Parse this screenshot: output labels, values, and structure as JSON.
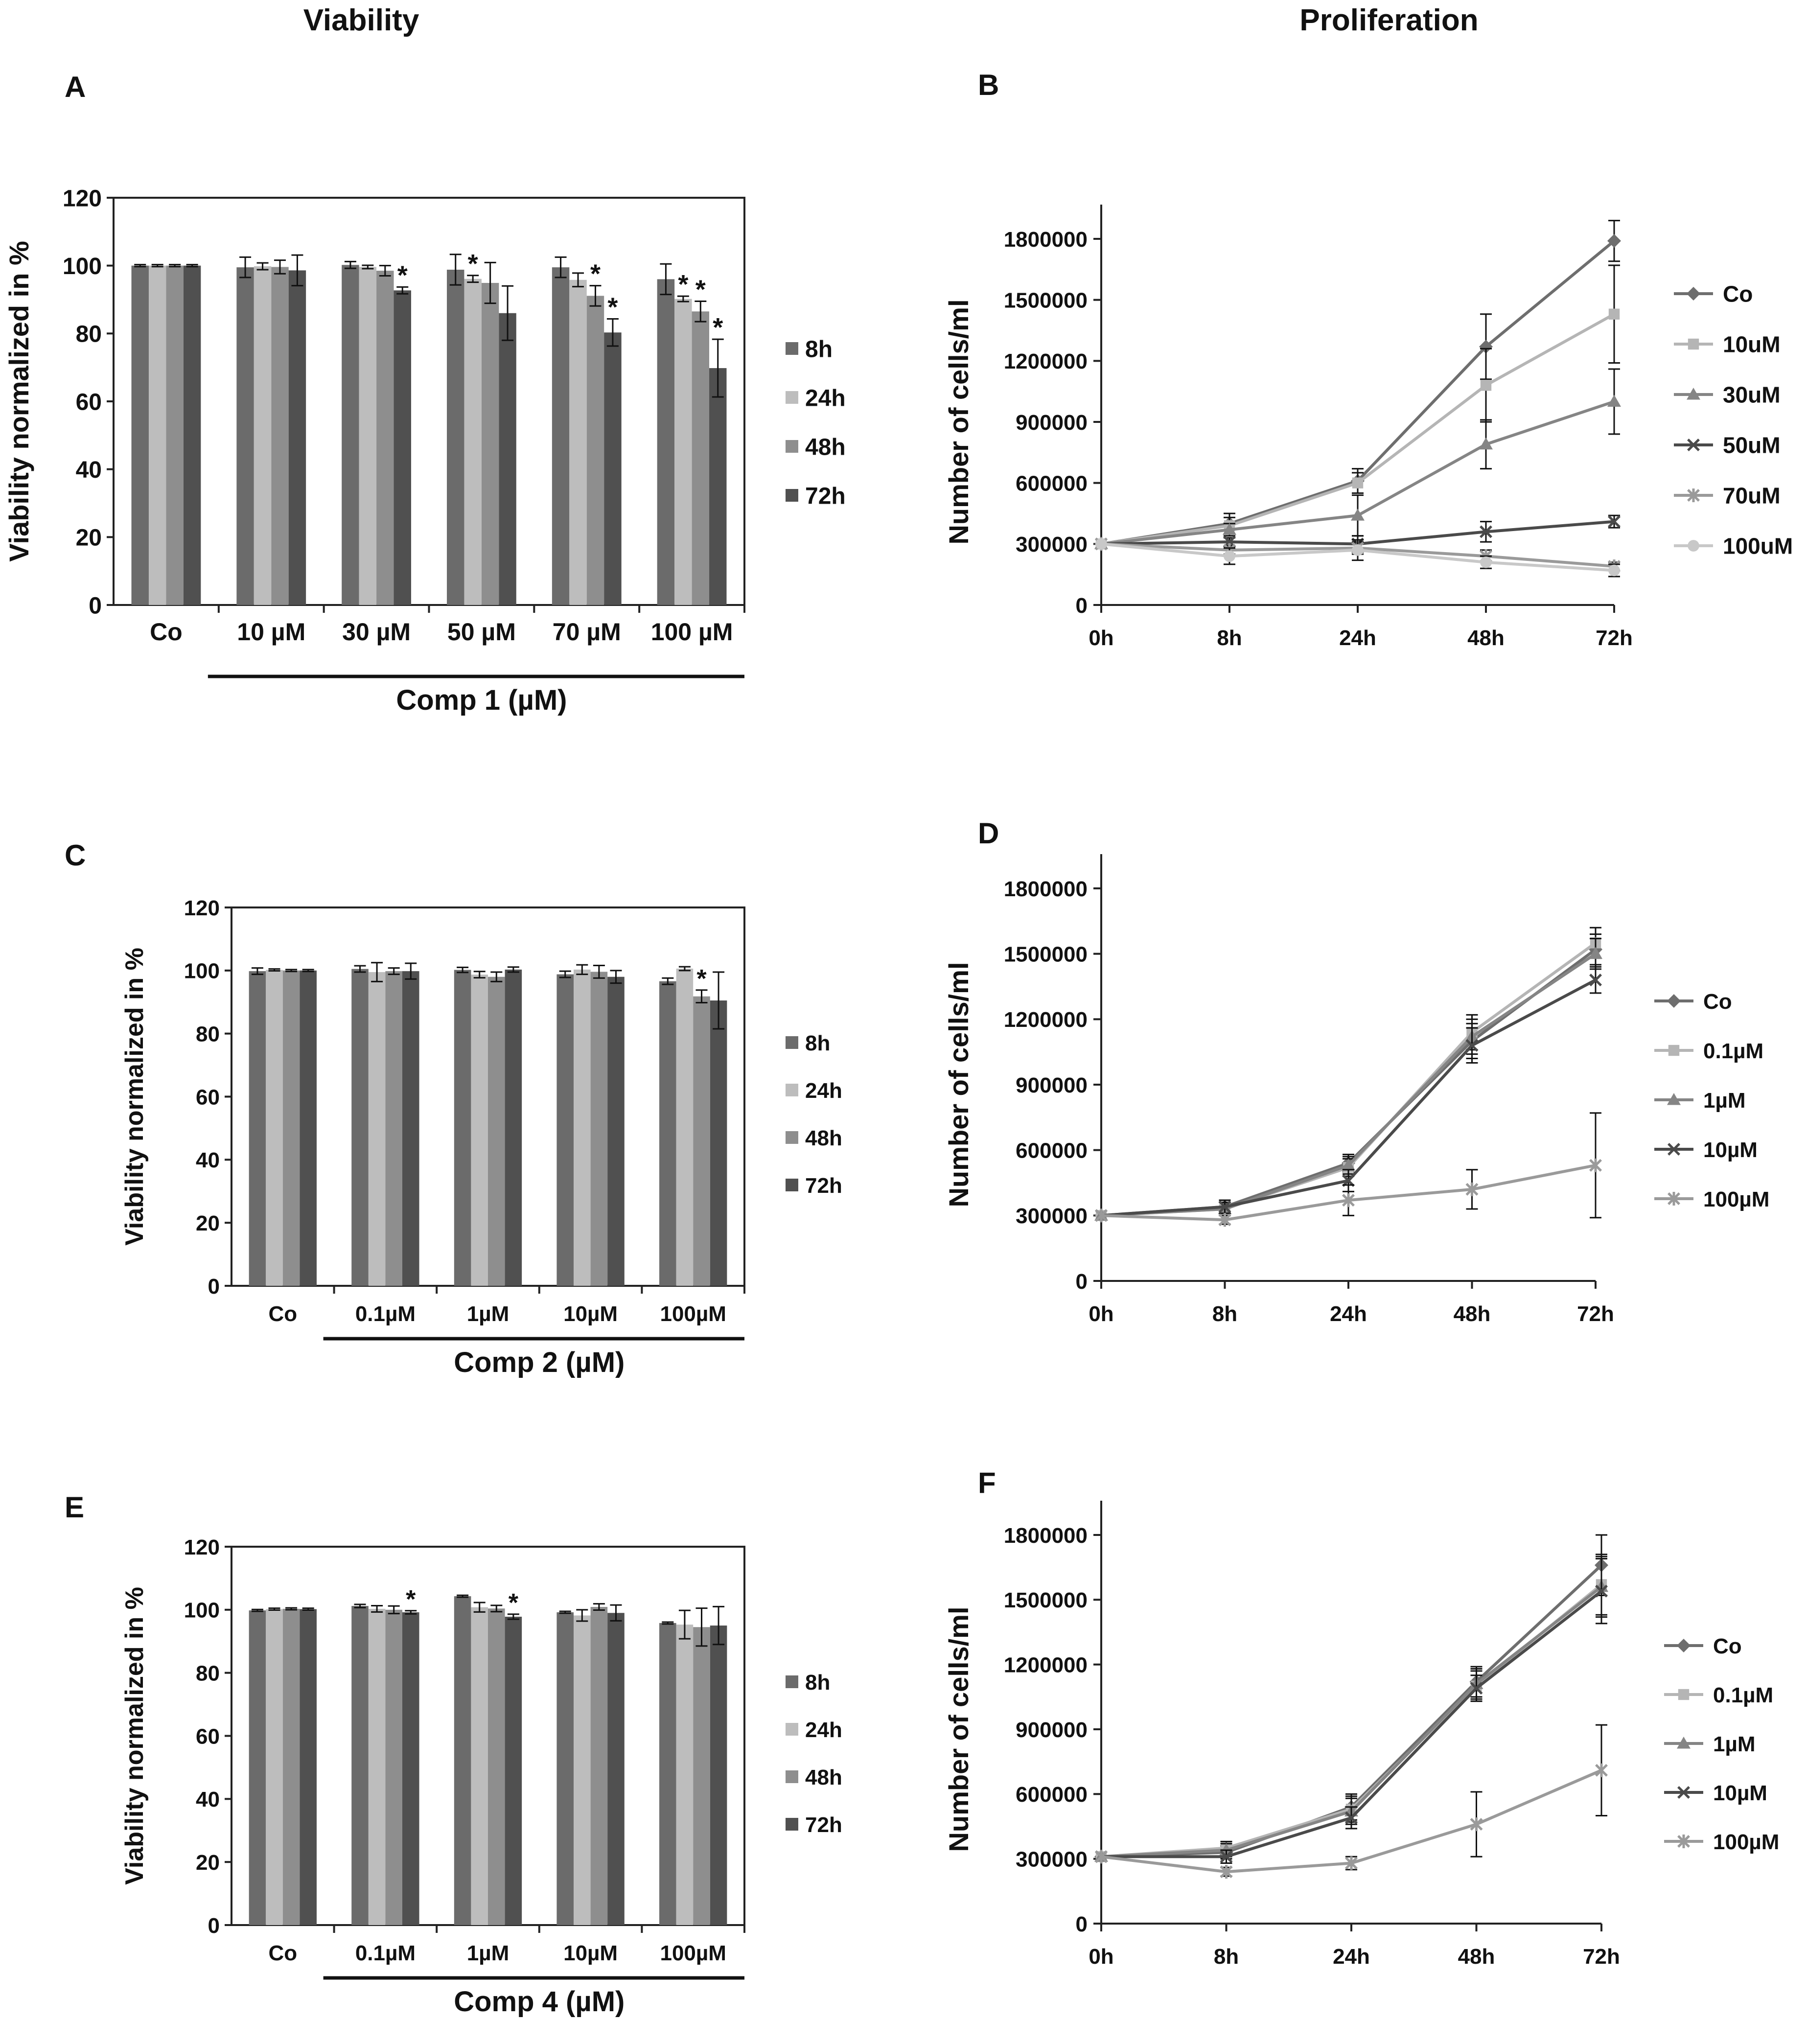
{
  "headers": {
    "viability": "Viability",
    "proliferation": "Proliferation"
  },
  "colors": {
    "h8": "#6b6b6b",
    "h24": "#bdbdbd",
    "h48": "#8e8e8e",
    "h72": "#505050",
    "Co": "#6e6e6e",
    "c2": "#b5b5b5",
    "c3": "#858585",
    "c4": "#4a4a4a",
    "c5": "#9a9a9a",
    "c6": "#c8c8c8"
  },
  "chart_data": [
    {
      "panel": "A",
      "type": "bar",
      "ylabel": "Viability normalized in %",
      "ylim": [
        0,
        120
      ],
      "yticks": [
        0,
        20,
        40,
        60,
        80,
        100,
        120
      ],
      "categories": [
        "Co",
        "10 µM",
        "30 µM",
        "50 µM",
        "70 µM",
        "100 µM"
      ],
      "group_label": "Comp 1 (µM)",
      "series": [
        {
          "name": "8h",
          "values": [
            100,
            99.5,
            100.2,
            98.8,
            99.5,
            96
          ],
          "errors": [
            0.3,
            3,
            1,
            4.5,
            3,
            4.5
          ]
        },
        {
          "name": "24h",
          "values": [
            100,
            99.8,
            99.6,
            96.1,
            95.8,
            90.2
          ],
          "errors": [
            0.3,
            1,
            0.5,
            1,
            2,
            0.8
          ]
        },
        {
          "name": "48h",
          "values": [
            100,
            99.6,
            98.5,
            94.9,
            91.1,
            86.5
          ],
          "errors": [
            0.3,
            2,
            1.5,
            6,
            3,
            3
          ]
        },
        {
          "name": "72h",
          "values": [
            100,
            98.6,
            92.7,
            86,
            80.3,
            69.8
          ],
          "errors": [
            0.3,
            4.5,
            1,
            8,
            4,
            8.5
          ]
        }
      ],
      "annotations": [
        {
          "text": "*",
          "category": "30 µM",
          "series": "72h"
        },
        {
          "text": "*",
          "category": "50 µM",
          "series": "24h"
        },
        {
          "text": "*",
          "category": "70 µM",
          "series": "48h"
        },
        {
          "text": "*",
          "category": "70 µM",
          "series": "72h"
        },
        {
          "text": "*",
          "category": "100 µM",
          "series": "24h"
        },
        {
          "text": "*",
          "category": "100 µM",
          "series": "48h"
        },
        {
          "text": "*",
          "category": "100 µM",
          "series": "72h"
        }
      ],
      "legend": [
        "8h",
        "24h",
        "48h",
        "72h"
      ]
    },
    {
      "panel": "B",
      "type": "line",
      "ylabel": "Number of cells/ml",
      "ylim": [
        0,
        1800000
      ],
      "yticks": [
        0,
        300000,
        600000,
        900000,
        1200000,
        1500000,
        1800000
      ],
      "x": [
        "0h",
        "8h",
        "24h",
        "48h",
        "72h"
      ],
      "series": [
        {
          "name": "Co",
          "marker": "diamond",
          "values": [
            300000,
            400000,
            610000,
            1270000,
            1790000
          ],
          "errors": [
            0,
            50000,
            60000,
            160000,
            100000
          ]
        },
        {
          "name": "10uM",
          "marker": "square",
          "values": [
            300000,
            390000,
            600000,
            1080000,
            1430000
          ],
          "errors": [
            0,
            40000,
            50000,
            180000,
            240000
          ]
        },
        {
          "name": "30uM",
          "marker": "triangle",
          "values": [
            300000,
            370000,
            440000,
            790000,
            1000000
          ],
          "errors": [
            0,
            30000,
            100000,
            120000,
            160000
          ]
        },
        {
          "name": "50uM",
          "marker": "x",
          "values": [
            300000,
            310000,
            300000,
            360000,
            410000
          ],
          "errors": [
            0,
            20000,
            40000,
            50000,
            30000
          ]
        },
        {
          "name": "70uM",
          "marker": "star",
          "values": [
            300000,
            270000,
            280000,
            240000,
            190000
          ],
          "errors": [
            0,
            20000,
            30000,
            30000,
            20000
          ]
        },
        {
          "name": "100uM",
          "marker": "circle",
          "values": [
            300000,
            240000,
            270000,
            210000,
            170000
          ],
          "errors": [
            0,
            40000,
            50000,
            30000,
            30000
          ]
        }
      ],
      "legend": [
        "Co",
        "10uM",
        "30uM",
        "50uM",
        "70uM",
        "100uM"
      ]
    },
    {
      "panel": "C",
      "type": "bar",
      "ylabel": "Viability normalized in %",
      "ylim": [
        0,
        120
      ],
      "yticks": [
        0,
        20,
        40,
        60,
        80,
        100,
        120
      ],
      "categories": [
        "Co",
        "0.1µM",
        "1µM",
        "10µM",
        "100µM"
      ],
      "group_label": "Comp 2 (µM)",
      "series": [
        {
          "name": "8h",
          "values": [
            99.8,
            100.5,
            100.2,
            98.8,
            96.6
          ],
          "errors": [
            1,
            1,
            0.8,
            1,
            1
          ]
        },
        {
          "name": "24h",
          "values": [
            100.2,
            99.5,
            98.7,
            100.3,
            100.6
          ],
          "errors": [
            0.3,
            3,
            1,
            1.5,
            0.6
          ]
        },
        {
          "name": "48h",
          "values": [
            100,
            99.8,
            98,
            99.6,
            91.8
          ],
          "errors": [
            0.3,
            1,
            1.5,
            2,
            2
          ]
        },
        {
          "name": "72h",
          "values": [
            100,
            99.8,
            100.3,
            98,
            90.5
          ],
          "errors": [
            0.3,
            2.5,
            0.8,
            2,
            9
          ]
        }
      ],
      "annotations": [
        {
          "text": "*",
          "category": "100µM",
          "series": "48h"
        }
      ],
      "legend": [
        "8h",
        "24h",
        "48h",
        "72h"
      ]
    },
    {
      "panel": "D",
      "type": "line",
      "ylabel": "Number of cells/ml",
      "ylim": [
        0,
        1800000
      ],
      "yticks": [
        0,
        300000,
        600000,
        900000,
        1200000,
        1500000,
        1800000
      ],
      "x": [
        "0h",
        "8h",
        "24h",
        "48h",
        "72h"
      ],
      "series": [
        {
          "name": "Co",
          "marker": "diamond",
          "values": [
            300000,
            340000,
            540000,
            1100000,
            1520000
          ],
          "errors": [
            0,
            30000,
            40000,
            80000,
            70000
          ]
        },
        {
          "name": "0.1µM",
          "marker": "square",
          "values": [
            300000,
            330000,
            520000,
            1140000,
            1550000
          ],
          "errors": [
            0,
            30000,
            40000,
            80000,
            70000
          ]
        },
        {
          "name": "1µM",
          "marker": "triangle",
          "values": [
            300000,
            330000,
            530000,
            1120000,
            1500000
          ],
          "errors": [
            0,
            30000,
            40000,
            80000,
            70000
          ]
        },
        {
          "name": "10µM",
          "marker": "x",
          "values": [
            300000,
            340000,
            460000,
            1080000,
            1380000
          ],
          "errors": [
            0,
            30000,
            50000,
            80000,
            60000
          ]
        },
        {
          "name": "100µM",
          "marker": "star",
          "values": [
            300000,
            280000,
            370000,
            420000,
            530000
          ],
          "errors": [
            0,
            20000,
            70000,
            90000,
            240000
          ]
        }
      ],
      "legend": [
        "Co",
        "0.1µM",
        "1µM",
        "10µM",
        "100µM"
      ]
    },
    {
      "panel": "E",
      "type": "bar",
      "ylabel": "Viability normalized in %",
      "ylim": [
        0,
        120
      ],
      "yticks": [
        0,
        20,
        40,
        60,
        80,
        100,
        120
      ],
      "categories": [
        "Co",
        "0.1µM",
        "1µM",
        "10µM",
        "100µM"
      ],
      "group_label": "Comp 4 (µM)",
      "series": [
        {
          "name": "8h",
          "values": [
            99.8,
            101.2,
            104.3,
            99.2,
            95.8
          ],
          "errors": [
            0.3,
            0.5,
            0.3,
            0.3,
            0.3
          ]
        },
        {
          "name": "24h",
          "values": [
            100.2,
            100.3,
            100.8,
            98.2,
            95.3
          ],
          "errors": [
            0.3,
            1,
            1.5,
            1.8,
            4.5
          ]
        },
        {
          "name": "48h",
          "values": [
            100.3,
            100,
            100.4,
            100.9,
            94.5
          ],
          "errors": [
            0.3,
            1.2,
            1,
            1,
            6
          ]
        },
        {
          "name": "72h",
          "values": [
            100.2,
            99.2,
            97.8,
            99,
            95
          ],
          "errors": [
            0.3,
            0.5,
            0.8,
            2.5,
            6
          ]
        }
      ],
      "annotations": [
        {
          "text": "*",
          "category": "0.1µM",
          "series": "72h"
        },
        {
          "text": "*",
          "category": "1µM",
          "series": "72h"
        }
      ],
      "legend": [
        "8h",
        "24h",
        "48h",
        "72h"
      ]
    },
    {
      "panel": "F",
      "type": "line",
      "ylabel": "Number of cells/ml",
      "ylim": [
        0,
        1800000
      ],
      "yticks": [
        0,
        300000,
        600000,
        900000,
        1200000,
        1500000,
        1800000
      ],
      "x": [
        "0h",
        "8h",
        "24h",
        "48h",
        "72h"
      ],
      "series": [
        {
          "name": "Co",
          "marker": "diamond",
          "values": [
            310000,
            330000,
            540000,
            1120000,
            1660000
          ],
          "errors": [
            0,
            30000,
            60000,
            70000,
            140000
          ]
        },
        {
          "name": "0.1µM",
          "marker": "square",
          "values": [
            310000,
            350000,
            530000,
            1100000,
            1570000
          ],
          "errors": [
            0,
            30000,
            60000,
            70000,
            140000
          ]
        },
        {
          "name": "1µM",
          "marker": "triangle",
          "values": [
            310000,
            340000,
            520000,
            1110000,
            1560000
          ],
          "errors": [
            0,
            30000,
            60000,
            70000,
            140000
          ]
        },
        {
          "name": "10µM",
          "marker": "x",
          "values": [
            310000,
            310000,
            490000,
            1090000,
            1540000
          ],
          "errors": [
            0,
            30000,
            50000,
            60000,
            150000
          ]
        },
        {
          "name": "100µM",
          "marker": "star",
          "values": [
            310000,
            240000,
            280000,
            460000,
            710000
          ],
          "errors": [
            0,
            20000,
            30000,
            150000,
            210000
          ]
        }
      ],
      "legend": [
        "Co",
        "0.1µM",
        "1µM",
        "10µM",
        "100µM"
      ]
    }
  ]
}
